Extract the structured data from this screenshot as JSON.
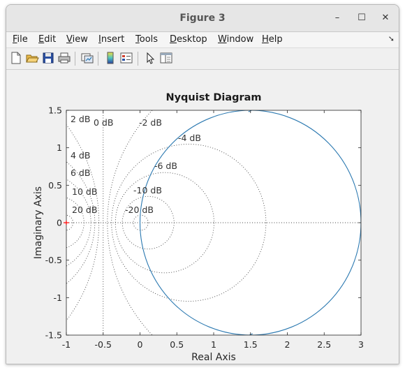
{
  "window": {
    "title": "Figure 3",
    "controls": {
      "minimize": "–",
      "maximize": "☐",
      "close": "✕"
    }
  },
  "menubar": {
    "items": [
      {
        "prefix": "",
        "underline": "F",
        "rest": "ile"
      },
      {
        "prefix": "",
        "underline": "E",
        "rest": "dit"
      },
      {
        "prefix": "",
        "underline": "V",
        "rest": "iew"
      },
      {
        "prefix": "",
        "underline": "I",
        "rest": "nsert"
      },
      {
        "prefix": "",
        "underline": "T",
        "rest": "ools"
      },
      {
        "prefix": "",
        "underline": "D",
        "rest": "esktop"
      },
      {
        "prefix": "",
        "underline": "W",
        "rest": "indow"
      },
      {
        "prefix": "",
        "underline": "H",
        "rest": "elp"
      }
    ],
    "overflow_icon": "arrow-icon"
  },
  "toolbar": {
    "buttons": [
      "new-figure-icon",
      "open-file-icon",
      "save-icon",
      "print-icon",
      "link-plot-icon",
      "colorbar-icon",
      "legend-icon",
      "pointer-icon",
      "property-editor-icon"
    ]
  },
  "colors": {
    "curve": "#2a78b0",
    "grid": "#444444",
    "critical_point": "#ff0000",
    "axis_text": "#262626"
  },
  "chart_data": {
    "type": "line",
    "title": "Nyquist Diagram",
    "xlabel": "Real Axis",
    "ylabel": "Imaginary Axis",
    "xlim": [
      -1,
      3
    ],
    "ylim": [
      -1.5,
      1.5
    ],
    "xticks": [
      "-1",
      "-0.5",
      "0",
      "0.5",
      "1",
      "1.5",
      "2",
      "2.5",
      "3"
    ],
    "yticks": [
      "-1.5",
      "-1",
      "-0.5",
      "0",
      "0.5",
      "1",
      "1.5"
    ],
    "grid": "on",
    "critical_point": {
      "x": -1,
      "y": 0
    },
    "series": [
      {
        "shape": "circle",
        "center": [
          1.5,
          0
        ],
        "radius": 1.5,
        "arrows_at": [
          [
            1.5,
            1.5
          ],
          [
            1.5,
            -1.5
          ]
        ]
      }
    ],
    "db_contours": [
      {
        "label": "0 dB",
        "db": 0
      },
      {
        "label": "2 dB",
        "db": 2
      },
      {
        "label": "4 dB",
        "db": 4
      },
      {
        "label": "6 dB",
        "db": 6
      },
      {
        "label": "10 dB",
        "db": 10
      },
      {
        "label": "20 dB",
        "db": 20
      },
      {
        "label": "-2 dB",
        "db": -2
      },
      {
        "label": "-4 dB",
        "db": -4
      },
      {
        "label": "-6 dB",
        "db": -6
      },
      {
        "label": "-10 dB",
        "db": -10
      },
      {
        "label": "-20 dB",
        "db": -20
      }
    ]
  }
}
